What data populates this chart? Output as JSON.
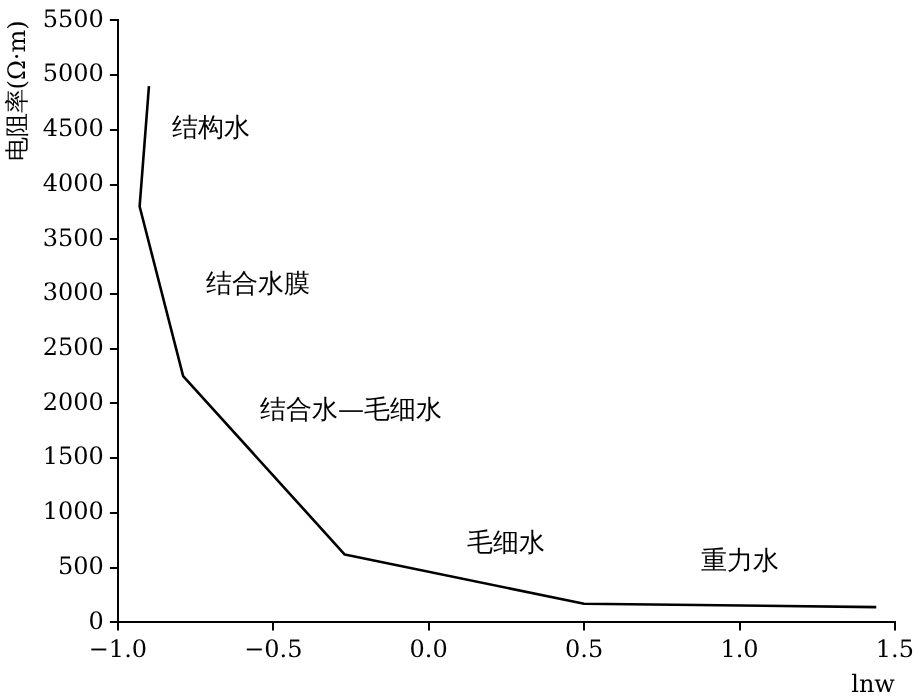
{
  "chart_data": {
    "type": "line",
    "xlabel": "lnw",
    "ylabel": "电阻率(Ω·m)",
    "series": [
      {
        "color": "#000000",
        "x": [
          -0.9,
          -0.93,
          -0.79,
          -0.27,
          0.5,
          1.44
        ],
        "values": [
          4900,
          3800,
          2250,
          620,
          170,
          140
        ]
      }
    ],
    "xlim": [
      -1.0,
      1.5
    ],
    "xticks": [
      {
        "value": -1.0,
        "label": "−1.0"
      },
      {
        "value": -0.5,
        "label": "−0.5"
      },
      {
        "value": 0,
        "label": "0.0"
      },
      {
        "value": 0.5,
        "label": "0.5"
      },
      {
        "value": 1.0,
        "label": "1.0"
      },
      {
        "value": 1.5,
        "label": "1.5"
      }
    ],
    "ylim": [
      0,
      5500
    ],
    "yticks": [
      0,
      500,
      1000,
      1500,
      2000,
      2500,
      3000,
      3500,
      4000,
      4500,
      5000,
      5500
    ],
    "grid": false,
    "legend": false,
    "marker": "none",
    "line_style": "solid",
    "annotations": [
      "结构水",
      "结合水膜",
      "结合水—毛细水",
      "毛细水",
      "重力水"
    ]
  }
}
